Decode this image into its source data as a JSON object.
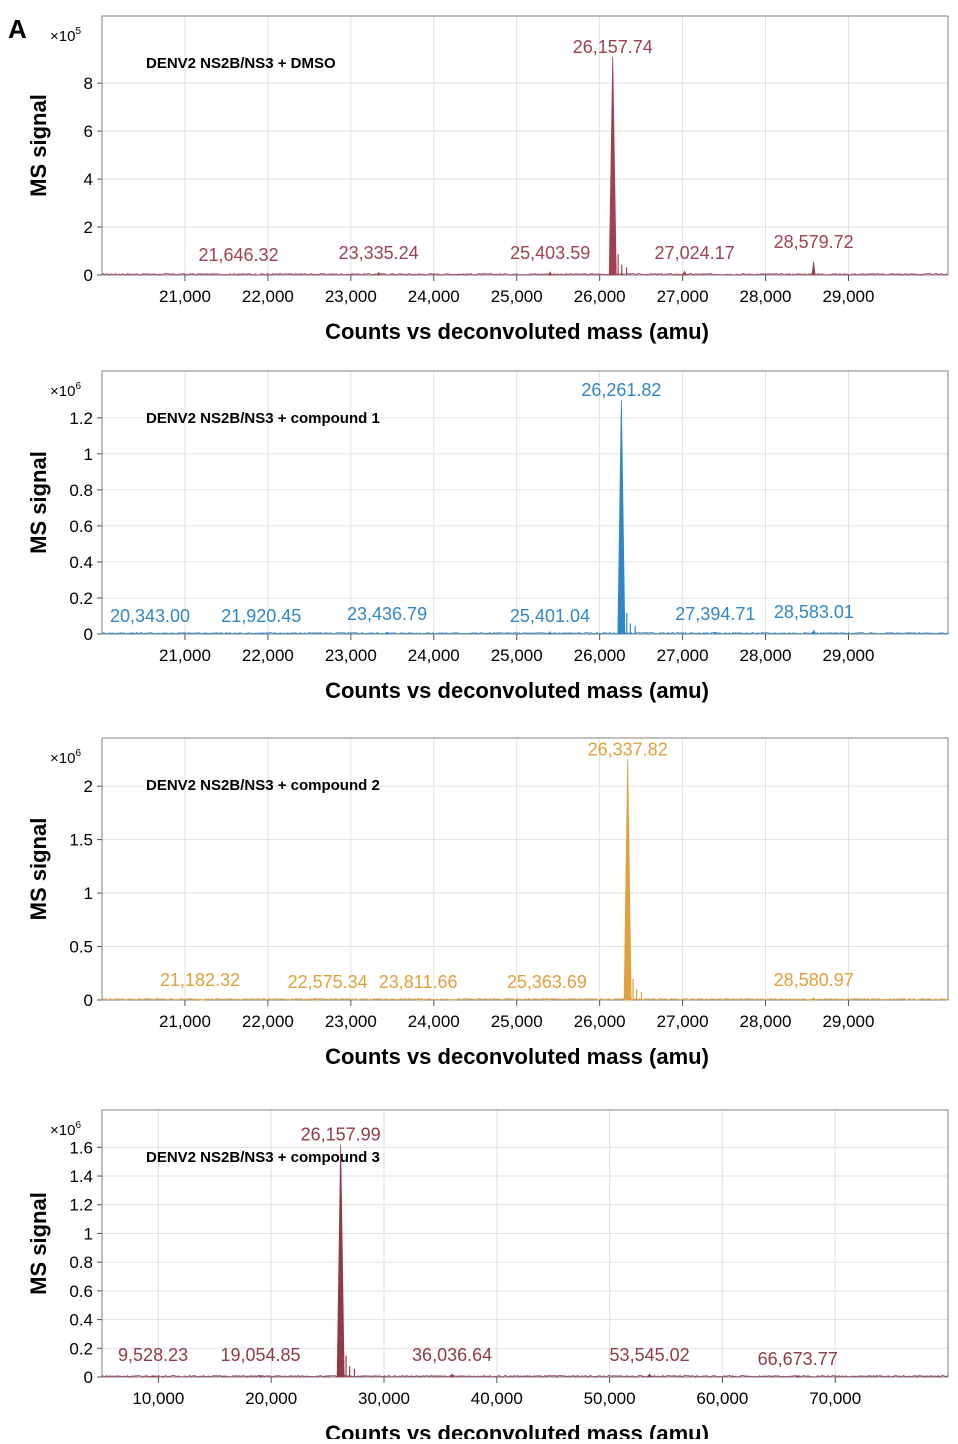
{
  "panel_letter": "A",
  "chart_data": [
    {
      "type": "line",
      "sample_label": "DENV2 NS2B/NS3 + DMSO",
      "multiplier_base": "×10",
      "multiplier_exp": "5",
      "ylabel": "MS signal",
      "xlabel": "Counts vs deconvoluted mass (amu)",
      "color": "#9e4150",
      "xlim": [
        20000,
        30200
      ],
      "ylim": [
        0,
        10.8
      ],
      "x_ticks": [
        21000,
        22000,
        23000,
        24000,
        25000,
        26000,
        27000,
        28000,
        29000
      ],
      "x_tick_labels": [
        "21,000",
        "22,000",
        "23,000",
        "24,000",
        "25,000",
        "26,000",
        "27,000",
        "28,000",
        "29,000"
      ],
      "y_ticks": [
        0,
        2,
        4,
        6,
        8
      ],
      "y_tick_labels": [
        "0",
        "2",
        "4",
        "6",
        "8"
      ],
      "peaks": [
        {
          "x": 21646.32,
          "y": 0.05,
          "label": "21,646.32"
        },
        {
          "x": 23335.24,
          "y": 0.1,
          "label": "23,335.24"
        },
        {
          "x": 25403.59,
          "y": 0.12,
          "label": "25,403.59"
        },
        {
          "x": 26157.74,
          "y": 9.1,
          "label": "26,157.74"
        },
        {
          "x": 27024.17,
          "y": 0.15,
          "label": "27,024.17"
        },
        {
          "x": 28579.72,
          "y": 0.55,
          "label": "28,579.72"
        }
      ]
    },
    {
      "type": "line",
      "sample_label": "DENV2 NS2B/NS3 + compound 1",
      "multiplier_base": "×10",
      "multiplier_exp": "6",
      "ylabel": "MS signal",
      "xlabel": "Counts vs deconvoluted mass (amu)",
      "color": "#2f87c8",
      "xlim": [
        20000,
        30200
      ],
      "ylim": [
        0,
        1.46
      ],
      "x_ticks": [
        21000,
        22000,
        23000,
        24000,
        25000,
        26000,
        27000,
        28000,
        29000
      ],
      "x_tick_labels": [
        "21,000",
        "22,000",
        "23,000",
        "24,000",
        "25,000",
        "26,000",
        "27,000",
        "28,000",
        "29,000"
      ],
      "y_ticks": [
        0,
        0.2,
        0.4,
        0.6,
        0.8,
        1,
        1.2
      ],
      "y_tick_labels": [
        "0",
        "0.2",
        "0.4",
        "0.6",
        "0.8",
        "1",
        "1.2"
      ],
      "peaks": [
        {
          "x": 20343.0,
          "y": 0.005,
          "label": "20,343.00"
        },
        {
          "x": 21920.45,
          "y": 0.005,
          "label": "21,920.45"
        },
        {
          "x": 23436.79,
          "y": 0.01,
          "label": "23,436.79"
        },
        {
          "x": 25401.04,
          "y": 0.012,
          "label": "25,401.04"
        },
        {
          "x": 26261.82,
          "y": 1.3,
          "label": "26,261.82"
        },
        {
          "x": 27394.71,
          "y": 0.01,
          "label": "27,394.71"
        },
        {
          "x": 28583.01,
          "y": 0.02,
          "label": "28,583.01"
        }
      ]
    },
    {
      "type": "line",
      "sample_label": "DENV2 NS2B/NS3 + compound 2",
      "multiplier_base": "×10",
      "multiplier_exp": "6",
      "ylabel": "MS signal",
      "xlabel": "Counts vs deconvoluted mass (amu)",
      "color": "#e0a03c",
      "xlim": [
        20000,
        30200
      ],
      "ylim": [
        0,
        2.45
      ],
      "x_ticks": [
        21000,
        22000,
        23000,
        24000,
        25000,
        26000,
        27000,
        28000,
        29000
      ],
      "x_tick_labels": [
        "21,000",
        "22,000",
        "23,000",
        "24,000",
        "25,000",
        "26,000",
        "27,000",
        "28,000",
        "29,000"
      ],
      "y_ticks": [
        0,
        0.5,
        1,
        1.5,
        2
      ],
      "y_tick_labels": [
        "0",
        "0.5",
        "1",
        "1.5",
        "2"
      ],
      "peaks": [
        {
          "x": 21182.32,
          "y": 0.01,
          "label": "21,182.32"
        },
        {
          "x": 22575.34,
          "y": 0.01,
          "label": "22,575.34"
        },
        {
          "x": 23811.66,
          "y": 0.01,
          "label": "23,811.66"
        },
        {
          "x": 25363.69,
          "y": 0.02,
          "label": "25,363.69"
        },
        {
          "x": 26337.82,
          "y": 2.25,
          "label": "26,337.82"
        },
        {
          "x": 28580.97,
          "y": 0.02,
          "label": "28,580.97"
        }
      ]
    },
    {
      "type": "line",
      "sample_label": "DENV2 NS2B/NS3 + compound 3",
      "multiplier_base": "×10",
      "multiplier_exp": "6",
      "ylabel": "MS signal",
      "xlabel": "Counts vs deconvoluted mass (amu)",
      "color": "#8f3b45",
      "xlim": [
        5000,
        80000
      ],
      "ylim": [
        0,
        1.86
      ],
      "x_ticks": [
        10000,
        20000,
        30000,
        40000,
        50000,
        60000,
        70000
      ],
      "x_tick_labels": [
        "10,000",
        "20,000",
        "30,000",
        "40,000",
        "50,000",
        "60,000",
        "70,000"
      ],
      "y_ticks": [
        0,
        0.2,
        0.4,
        0.6,
        0.8,
        1,
        1.2,
        1.4,
        1.6
      ],
      "y_tick_labels": [
        "0",
        "0.2",
        "0.4",
        "0.6",
        "0.8",
        "1",
        "1.2",
        "1.4",
        "1.6"
      ],
      "peaks": [
        {
          "x": 9528.23,
          "y": 0.01,
          "label": "9,528.23"
        },
        {
          "x": 19054.85,
          "y": 0.01,
          "label": "19,054.85"
        },
        {
          "x": 26157.99,
          "y": 1.62,
          "label": "26,157.99"
        },
        {
          "x": 36036.64,
          "y": 0.02,
          "label": "36,036.64"
        },
        {
          "x": 53545.02,
          "y": 0.02,
          "label": "53,545.02"
        },
        {
          "x": 66673.77,
          "y": 0.01,
          "label": "66,673.77"
        }
      ]
    }
  ]
}
